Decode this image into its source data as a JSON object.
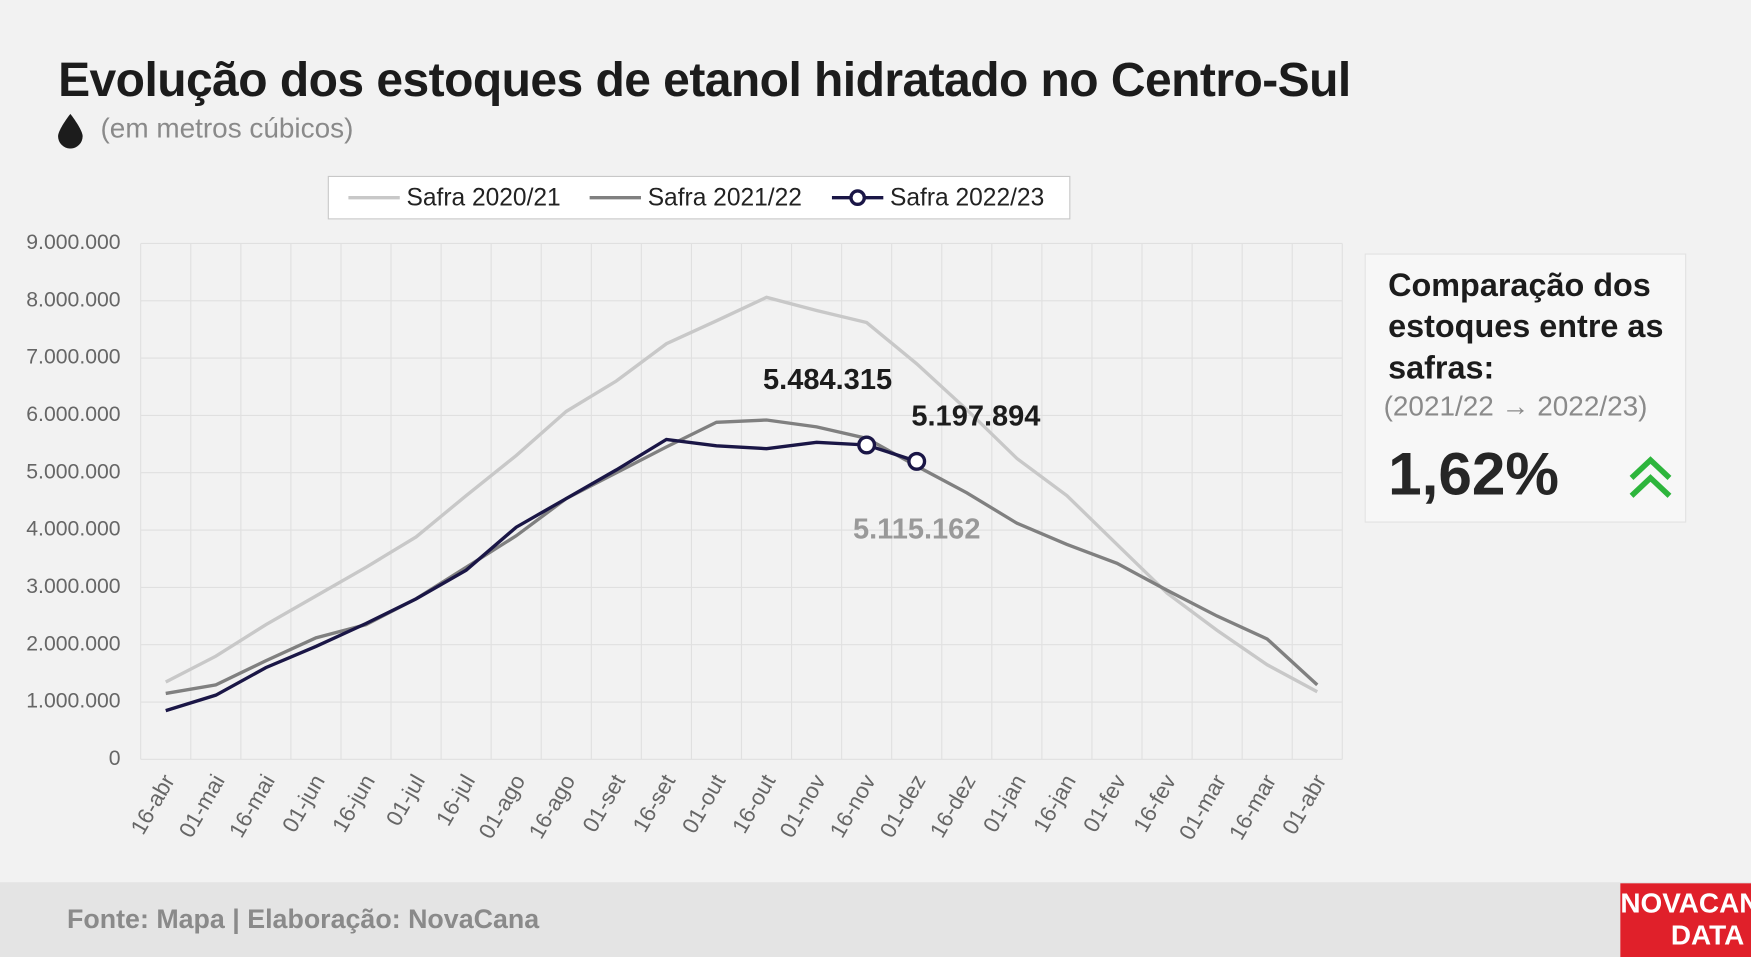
{
  "title": "Evolução dos estoques de etanol hidratado no Centro-Sul",
  "subtitle": "(em metros cúbicos)",
  "chart_data": {
    "type": "line",
    "categories": [
      "16-abr",
      "01-mai",
      "16-mai",
      "01-jun",
      "16-jun",
      "01-jul",
      "16-jul",
      "01-ago",
      "16-ago",
      "01-set",
      "16-set",
      "01-out",
      "16-out",
      "01-nov",
      "16-nov",
      "01-dez",
      "16-dez",
      "01-jan",
      "16-jan",
      "01-fev",
      "16-fev",
      "01-mar",
      "16-mar",
      "01-abr"
    ],
    "series": [
      {
        "name": "Safra 2020/21",
        "color": "#c8c8c8",
        "values": [
          1350000,
          1800000,
          2350000,
          2850000,
          3350000,
          3880000,
          4600000,
          5300000,
          6070000,
          6600000,
          7250000,
          7650000,
          8060000,
          7830000,
          7620000,
          6900000,
          6100000,
          5250000,
          4600000,
          3750000,
          2900000,
          2250000,
          1650000,
          1180000
        ]
      },
      {
        "name": "Safra 2021/22",
        "color": "#808080",
        "values": [
          1150000,
          1300000,
          1720000,
          2120000,
          2350000,
          2800000,
          3350000,
          3900000,
          4550000,
          5000000,
          5450000,
          5880000,
          5920000,
          5800000,
          5600000,
          5115162,
          4650000,
          4120000,
          3750000,
          3420000,
          2950000,
          2500000,
          2100000,
          1300000
        ],
        "value_labels": [
          null,
          null,
          null,
          null,
          null,
          null,
          null,
          null,
          null,
          null,
          null,
          null,
          null,
          null,
          null,
          "5.115.162",
          null,
          null,
          null,
          null,
          null,
          null,
          null,
          null
        ]
      },
      {
        "name": "Safra 2022/23",
        "color": "#1a1646",
        "marker": true,
        "values": [
          850000,
          1120000,
          1600000,
          1970000,
          2370000,
          2800000,
          3300000,
          4050000,
          4550000,
          5050000,
          5580000,
          5470000,
          5420000,
          5530000,
          5484315,
          5197894,
          null,
          null,
          null,
          null,
          null,
          null,
          null,
          null
        ],
        "value_labels": [
          null,
          null,
          null,
          null,
          null,
          null,
          null,
          null,
          null,
          null,
          null,
          null,
          null,
          null,
          "5.484.315",
          "5.197.894",
          null,
          null,
          null,
          null,
          null,
          null,
          null,
          null
        ]
      }
    ],
    "ylim": [
      0,
      9000000
    ],
    "yticks": [
      0,
      {
        "value": 1000000,
        "label": "1.000.000"
      },
      {
        "value": 2000000,
        "label": "2.000.000"
      },
      {
        "value": 3000000,
        "label": "3.000.000"
      },
      {
        "value": 4000000,
        "label": "4.000.000"
      },
      {
        "value": 5000000,
        "label": "5.000.000"
      },
      {
        "value": 6000000,
        "label": "6.000.000"
      },
      {
        "value": 7000000,
        "label": "7.000.000"
      },
      {
        "value": 8000000,
        "label": "8.000.000"
      },
      {
        "value": 9000000,
        "label": "9.000.000"
      }
    ],
    "grid": true,
    "legend": "top"
  },
  "panel": {
    "title": "Comparação dos estoques entre as safras:",
    "subtitle": "(2021/22 → 2022/23)",
    "value": "1,62%"
  },
  "footer": {
    "source": "Fonte: Mapa | Elaboração: NovaCana",
    "logo_top": "NOVACANA",
    "logo_bottom": "DATA"
  }
}
